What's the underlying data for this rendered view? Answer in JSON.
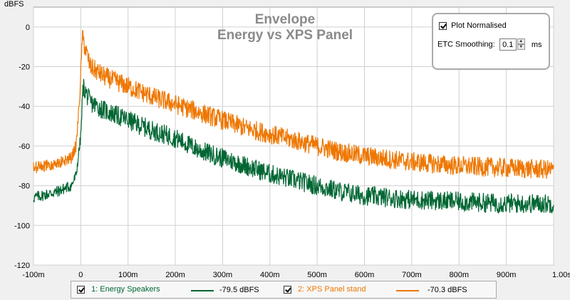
{
  "chart_data": {
    "type": "line",
    "title": "Envelope",
    "subtitle": "Energy vs XPS Panel",
    "ylabel": "dBFS",
    "xlabel": "",
    "xlim": [
      -0.1,
      1.0
    ],
    "ylim": [
      -120,
      10
    ],
    "x_tick_values": [
      -0.1,
      0,
      0.1,
      0.2,
      0.3,
      0.4,
      0.5,
      0.6,
      0.7,
      0.8,
      0.9,
      1.0
    ],
    "x_tick_labels": [
      "-100m",
      "0",
      "100m",
      "200m",
      "300m",
      "400m",
      "500m",
      "600m",
      "700m",
      "800m",
      "900m",
      "1.00s"
    ],
    "y_tick_values": [
      0,
      -20,
      -40,
      -60,
      -80,
      -100,
      -120
    ],
    "y_tick_labels": [
      "0",
      "-20",
      "-40",
      "-60",
      "-80",
      "-100",
      "-120"
    ],
    "grid": true,
    "legend_position": "bottom",
    "series": [
      {
        "name": "1: Energy Speakers",
        "color": "#006633",
        "legend_value": "-79.5 dBFS",
        "x": [
          -0.1,
          -0.05,
          -0.02,
          -0.01,
          -0.005,
          0,
          0.005,
          0.02,
          0.05,
          0.1,
          0.15,
          0.2,
          0.25,
          0.3,
          0.35,
          0.4,
          0.45,
          0.5,
          0.55,
          0.6,
          0.7,
          0.8,
          0.9,
          1.0
        ],
        "y": [
          -86,
          -83,
          -80,
          -75,
          -65,
          -55,
          -30,
          -38,
          -42,
          -47,
          -52,
          -56,
          -62,
          -66,
          -70,
          -74,
          -77,
          -80,
          -83,
          -85,
          -87,
          -88,
          -89,
          -89
        ]
      },
      {
        "name": "2: XPS Panel stand",
        "color": "#ee7700",
        "legend_value": "-70.3 dBFS",
        "x": [
          -0.1,
          -0.05,
          -0.02,
          -0.01,
          -0.005,
          0,
          0.003,
          0.02,
          0.05,
          0.1,
          0.15,
          0.2,
          0.25,
          0.3,
          0.35,
          0.4,
          0.45,
          0.5,
          0.55,
          0.6,
          0.7,
          0.8,
          0.9,
          1.0
        ],
        "y": [
          -71,
          -69,
          -66,
          -60,
          -45,
          -25,
          -5,
          -20,
          -25,
          -30,
          -35,
          -39,
          -43,
          -47,
          -51,
          -54,
          -57,
          -60,
          -63,
          -65,
          -68,
          -70,
          -71,
          -72
        ]
      }
    ]
  },
  "controls": {
    "plot_normalised_label": "Plot Normalised",
    "plot_normalised_checked": true,
    "etc_smoothing_label": "ETC Smoothing:",
    "etc_smoothing_value": "0.1",
    "etc_smoothing_unit": "ms"
  }
}
